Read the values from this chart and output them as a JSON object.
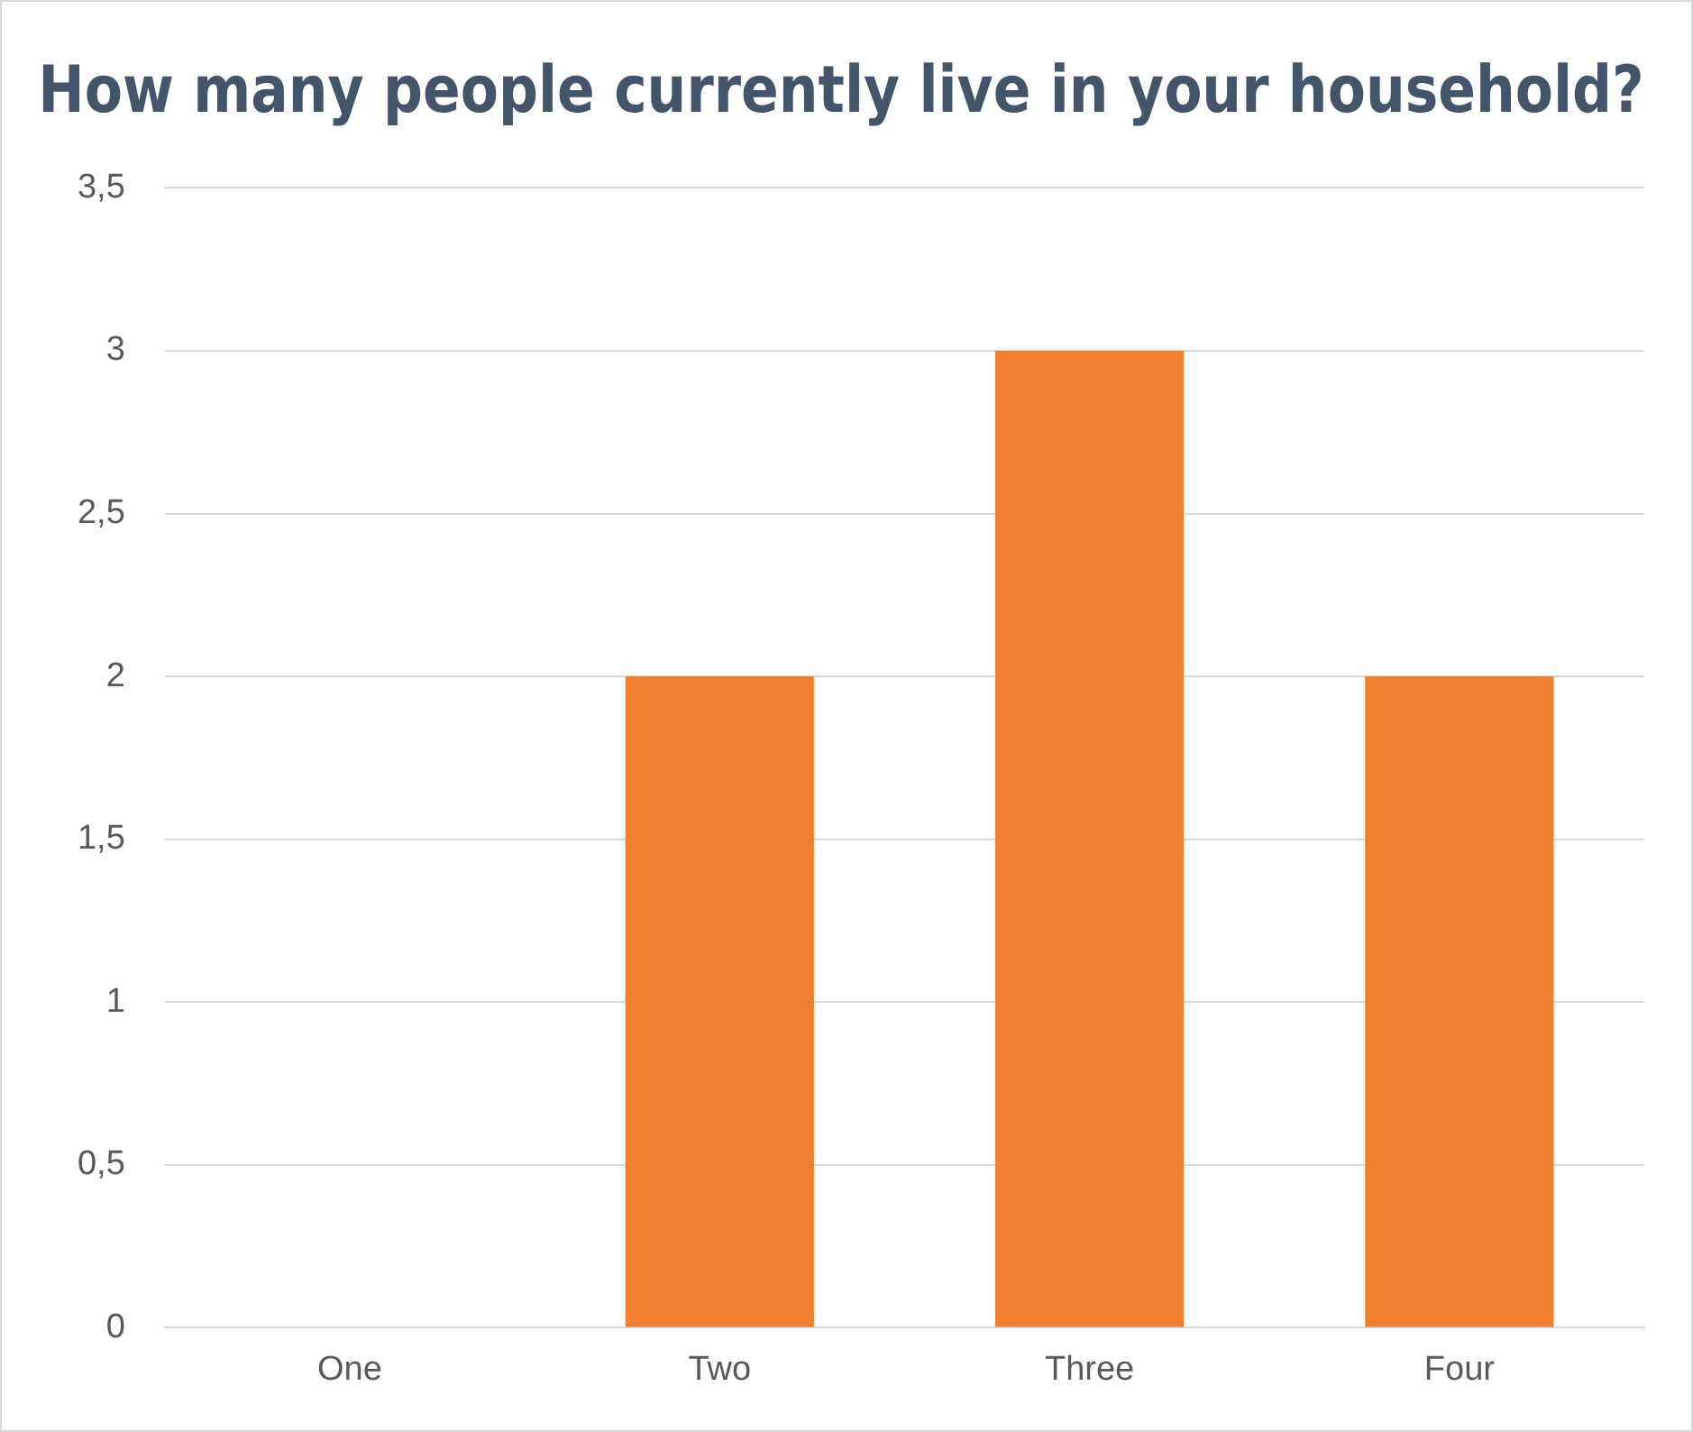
{
  "chart_data": {
    "type": "bar",
    "title": "How many people currently live in your household?",
    "categories": [
      "One",
      "Two",
      "Three",
      "Four"
    ],
    "values": [
      0,
      2,
      3,
      2
    ],
    "color": "#f07f2e",
    "ylim": [
      0,
      3.5
    ],
    "yticks": [
      0,
      {
        "value": 0.5,
        "label": "0,5"
      },
      1,
      {
        "value": 1.5,
        "label": "1,5"
      },
      2,
      {
        "value": 2.5,
        "label": "2,5"
      },
      3,
      {
        "value": 3.5,
        "label": "3,5"
      }
    ],
    "grid": "y",
    "legend": false
  }
}
